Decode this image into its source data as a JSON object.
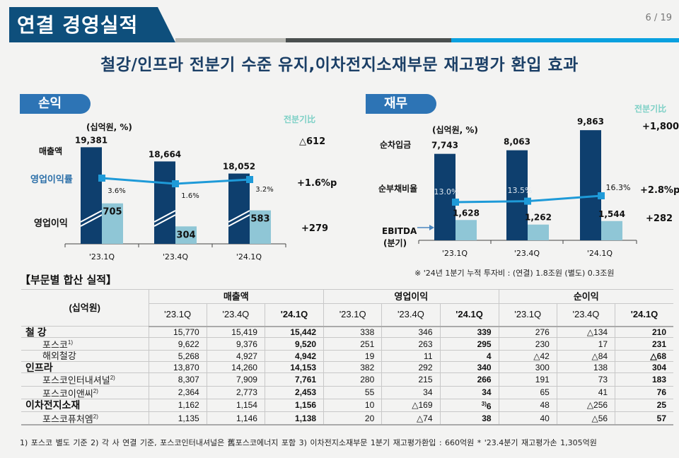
{
  "header": {
    "title": "연결 경영실적",
    "page": "6 / 19",
    "subtitle": "철강/인프라 전분기 수준 유지,이차전지소재부문 재고평가 환입 효과"
  },
  "colors": {
    "navy": "#0e3f6e",
    "light_bar": "#8fc6d6",
    "line": "#1e9ad8",
    "pill": "#2d74b5",
    "qoq_head": "#7dd0c6"
  },
  "pl": {
    "pill": "손익",
    "unit": "(십억원, %)",
    "qoq_head": "전분기比",
    "labels": {
      "revenue": "매출액",
      "margin": "영업이익률",
      "op": "영업이익"
    },
    "qoq": {
      "revenue": "△612",
      "margin": "+1.6%p",
      "op": "+279"
    }
  },
  "fin": {
    "pill": "재무",
    "unit": "(십억원, %)",
    "qoq_head": "전분기比",
    "labels": {
      "debt": "순차입금",
      "ratio": "순부채비율",
      "ebitda1": "EBITDA",
      "ebitda2": "(분기)"
    },
    "qoq": {
      "debt": "+1,800",
      "ratio": "+2.8%p",
      "ebitda": "+282"
    },
    "note": "※ '24년 1분기 누적 투자비 :  (연결) 1.8조원  (별도) 0.3조원"
  },
  "chart_data": [
    {
      "type": "bar",
      "title": "손익",
      "categories": [
        "'23.1Q",
        "'23.4Q",
        "'24.1Q"
      ],
      "series": [
        {
          "name": "매출액",
          "values": [
            19381,
            18664,
            18052
          ],
          "labels": [
            "19,381",
            "18,664",
            "18,052"
          ],
          "axis": "broken"
        },
        {
          "name": "영업이익",
          "values": [
            705,
            304,
            583
          ],
          "labels": [
            "705",
            "304",
            "583"
          ]
        },
        {
          "name": "영업이익률",
          "type": "line",
          "values": [
            3.6,
            1.6,
            3.2
          ],
          "labels": [
            "3.6%",
            "1.6%",
            "3.2%"
          ],
          "unit": "%"
        }
      ],
      "ylabel": "(십억원, %)"
    },
    {
      "type": "bar",
      "title": "재무",
      "categories": [
        "'23.1Q",
        "'23.4Q",
        "'24.1Q"
      ],
      "series": [
        {
          "name": "순차입금",
          "values": [
            7743,
            8063,
            9863
          ],
          "labels": [
            "7,743",
            "8,063",
            "9,863"
          ]
        },
        {
          "name": "EBITDA (분기)",
          "values": [
            1628,
            1262,
            1544
          ],
          "labels": [
            "1,628",
            "1,262",
            "1,544"
          ]
        },
        {
          "name": "순부채비율",
          "type": "line",
          "values": [
            13.0,
            13.5,
            16.3
          ],
          "labels": [
            "13.0%",
            "13.5%",
            "16.3%"
          ],
          "unit": "%"
        }
      ],
      "ylabel": "(십억원, %)"
    },
    {
      "type": "table",
      "title": "【부문별 합산 실적】",
      "unit": "(십억원)",
      "groups": [
        "매출액",
        "영업이익",
        "순이익"
      ],
      "periods": [
        "'23.1Q",
        "'23.4Q",
        "'24.1Q"
      ],
      "rows": [
        {
          "name": "철 강",
          "level": "main",
          "values": [
            "15,770",
            "15,419",
            "15,442",
            "338",
            "346",
            "339",
            "276",
            "△134",
            "210"
          ]
        },
        {
          "name": "포스코",
          "sup": "1)",
          "level": "sub",
          "values": [
            "9,622",
            "9,376",
            "9,520",
            "251",
            "263",
            "295",
            "230",
            "17",
            "231"
          ]
        },
        {
          "name": "해외철강",
          "level": "sub",
          "values": [
            "5,268",
            "4,927",
            "4,942",
            "19",
            "11",
            "4",
            "△42",
            "△84",
            "△68"
          ]
        },
        {
          "name": "인프라",
          "level": "main",
          "values": [
            "13,870",
            "14,260",
            "14,153",
            "382",
            "292",
            "340",
            "300",
            "138",
            "304"
          ]
        },
        {
          "name": "포스코인터내셔널",
          "sup": "2)",
          "level": "sub",
          "values": [
            "8,307",
            "7,909",
            "7,761",
            "280",
            "215",
            "266",
            "191",
            "73",
            "183"
          ]
        },
        {
          "name": "포스코이앤씨",
          "sup": "2)",
          "level": "sub",
          "values": [
            "2,364",
            "2,773",
            "2,453",
            "55",
            "34",
            "34",
            "65",
            "41",
            "76"
          ]
        },
        {
          "name": "이차전지소재",
          "level": "main",
          "values": [
            "1,162",
            "1,154",
            "1,156",
            "10",
            "△169",
            "6",
            "48",
            "△256",
            "25"
          ],
          "sups": {
            "5": "3)"
          }
        },
        {
          "name": "포스코퓨처엠",
          "sup": "2)",
          "level": "sub",
          "values": [
            "1,135",
            "1,146",
            "1,138",
            "20",
            "△74",
            "38",
            "40",
            "△56",
            "57"
          ]
        }
      ]
    }
  ],
  "footnotes": "1) 포스코 별도 기준    2) 각 사 연결 기준, 포스코인터내셔널은 舊포스코에너지 포함    3) 이차전지소재부문 1분기 재고평가환입 : 660억원    * '23.4분기 재고평가손 1,305억원"
}
